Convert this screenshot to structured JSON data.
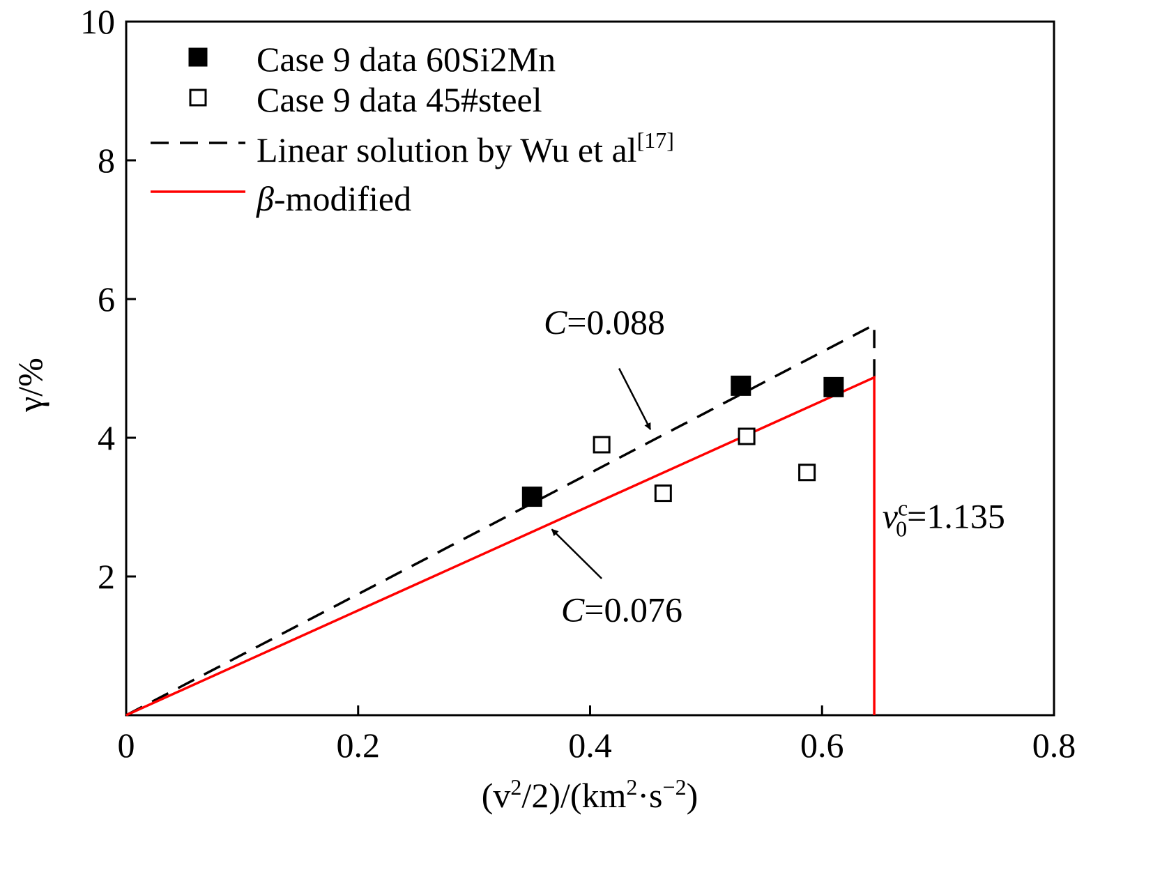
{
  "chart_data": {
    "type": "scatter",
    "xlabel": {
      "prefix": "(v",
      "sup1": "2",
      "mid": "/2)/(km",
      "sup2": "2",
      "mid2": "·s",
      "sup3": "−2",
      "suffix": ")"
    },
    "ylabel": "γ/%",
    "xlim": [
      0,
      0.8
    ],
    "ylim": [
      0,
      10
    ],
    "x_ticks": [
      {
        "value": 0,
        "label": "0"
      },
      {
        "value": 0.2,
        "label": "0.2"
      },
      {
        "value": 0.4,
        "label": "0.4"
      },
      {
        "value": 0.6,
        "label": "0.6"
      },
      {
        "value": 0.8,
        "label": "0.8"
      }
    ],
    "y_ticks": [
      {
        "value": 2,
        "label": "2"
      },
      {
        "value": 4,
        "label": "4"
      },
      {
        "value": 6,
        "label": "6"
      },
      {
        "value": 8,
        "label": "8"
      },
      {
        "value": 10,
        "label": "10"
      }
    ],
    "grid": false,
    "legend_position": "top-left",
    "series": [
      {
        "name": "Case 9 data 60Si2Mn",
        "kind": "scatter",
        "marker": "filled-square",
        "color": "#000000",
        "points": [
          [
            0.35,
            3.15
          ],
          [
            0.53,
            4.75
          ],
          [
            0.61,
            4.73
          ]
        ]
      },
      {
        "name": "Case 9 data 45#steel",
        "kind": "scatter",
        "marker": "open-square",
        "color": "#000000",
        "points": [
          [
            0.41,
            3.9
          ],
          [
            0.463,
            3.2
          ],
          [
            0.535,
            4.02
          ],
          [
            0.587,
            3.5
          ]
        ]
      },
      {
        "name": "Linear solution by Wu et al",
        "name_sup": "[17]",
        "kind": "line",
        "dash": true,
        "color": "#000000",
        "points": [
          [
            0,
            0
          ],
          [
            0.645,
            5.63
          ],
          [
            0.645,
            4.85
          ]
        ]
      },
      {
        "name": "-modified",
        "name_prefix": "β",
        "kind": "line",
        "dash": false,
        "color": "#ff0000",
        "points": [
          [
            0,
            0
          ],
          [
            0.645,
            4.87
          ],
          [
            0.645,
            0
          ]
        ]
      }
    ],
    "annotations": [
      {
        "name": "c-dashed",
        "italic": "C",
        "text": "=0.088",
        "x": 0.36,
        "y": 5.5,
        "arrow_from": [
          0.425,
          5.0
        ],
        "arrow_to": [
          0.452,
          4.12
        ]
      },
      {
        "name": "c-solid",
        "italic": "C",
        "text": "=0.076",
        "x": 0.375,
        "y": 1.35,
        "arrow_from": [
          0.41,
          1.97
        ],
        "arrow_to": [
          0.367,
          2.68
        ]
      },
      {
        "name": "v0c",
        "italic": "v",
        "sub": "0",
        "sup": "c",
        "text": "=1.135",
        "x": 0.652,
        "y": 2.7
      }
    ]
  }
}
